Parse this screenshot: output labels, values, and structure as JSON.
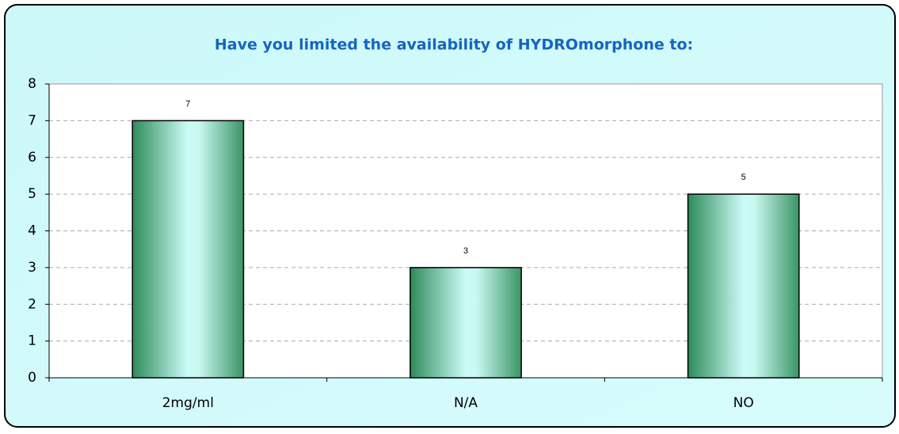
{
  "chart_data": {
    "type": "bar",
    "title": "Have you limited the availability of HYDROmorphone to:",
    "categories": [
      "2mg/ml",
      "N/A",
      "NO"
    ],
    "values": [
      7,
      3,
      5
    ],
    "ylim": [
      0,
      8
    ],
    "yticks": [
      0,
      1,
      2,
      3,
      4,
      5,
      6,
      7,
      8
    ],
    "grid": true
  }
}
